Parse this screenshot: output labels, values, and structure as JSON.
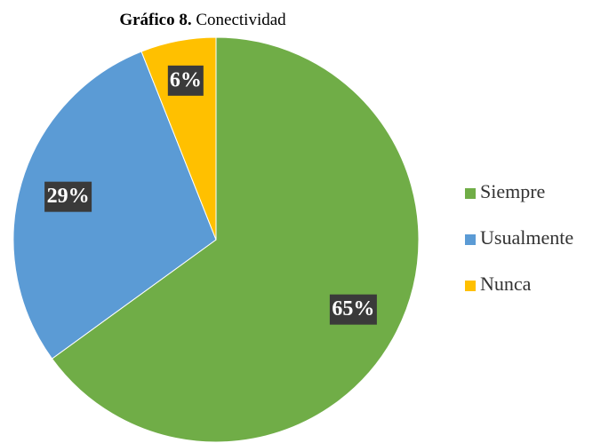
{
  "chart_data": {
    "type": "pie",
    "figure_label": "Gráfico 8.",
    "title": "Conectividad",
    "categories": [
      "Siempre",
      "Usualmente",
      "Nunca"
    ],
    "values": [
      65,
      29,
      6
    ],
    "value_labels": [
      "65%",
      "29%",
      "6%"
    ],
    "colors": [
      "#70ad47",
      "#5b9bd5",
      "#ffc000"
    ],
    "legend": "right"
  }
}
